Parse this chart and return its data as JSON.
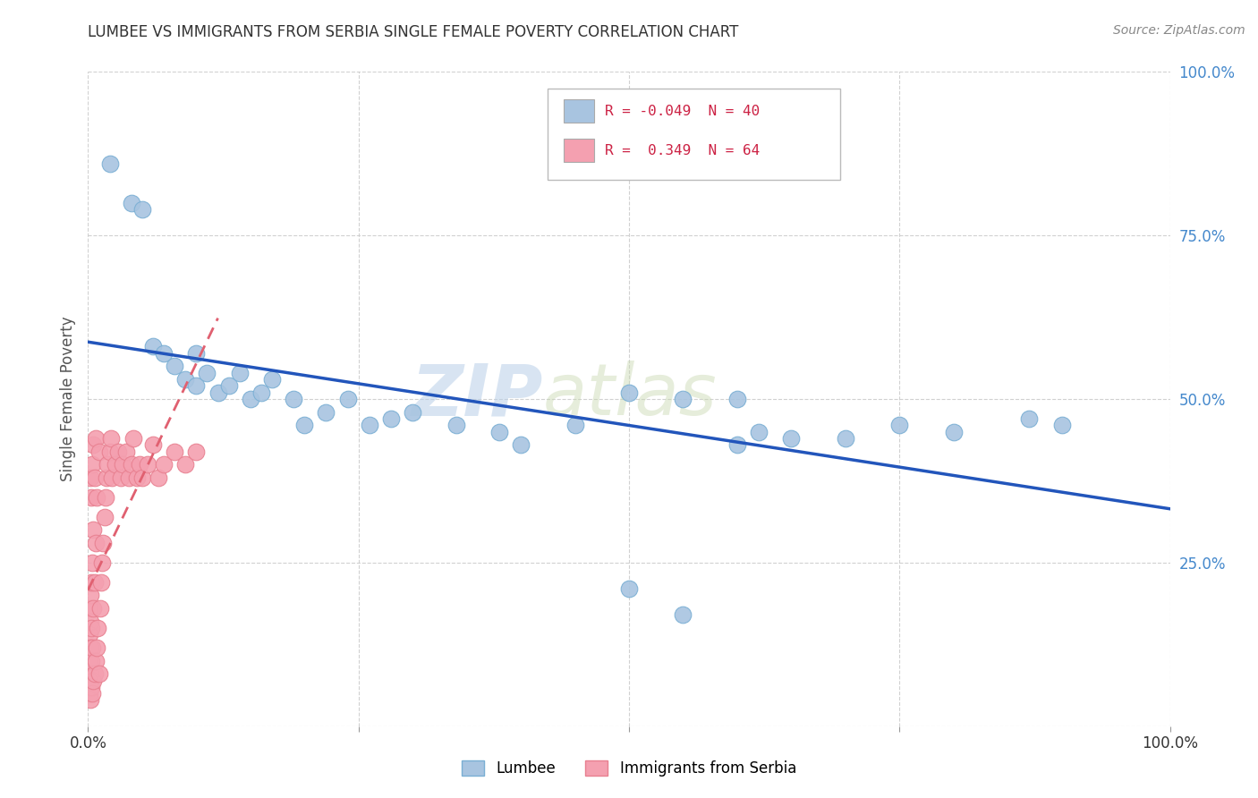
{
  "title": "LUMBEE VS IMMIGRANTS FROM SERBIA SINGLE FEMALE POVERTY CORRELATION CHART",
  "source": "Source: ZipAtlas.com",
  "ylabel": "Single Female Poverty",
  "xlim": [
    0,
    1.0
  ],
  "ylim": [
    0,
    1.0
  ],
  "lumbee_R": "-0.049",
  "lumbee_N": "40",
  "serbia_R": "0.349",
  "serbia_N": "64",
  "lumbee_color": "#a8c4e0",
  "lumbee_edge_color": "#7aafd4",
  "serbia_color": "#f4a0b0",
  "serbia_edge_color": "#e88090",
  "lumbee_line_color": "#2255bb",
  "serbia_line_color": "#e06070",
  "legend_lumbee_label": "Lumbee",
  "legend_serbia_label": "Immigrants from Serbia",
  "watermark_zip": "ZIP",
  "watermark_atlas": "atlas",
  "background_color": "#ffffff",
  "grid_color": "#cccccc",
  "lumbee_x": [
    0.02,
    0.04,
    0.05,
    0.06,
    0.07,
    0.08,
    0.09,
    0.1,
    0.1,
    0.11,
    0.12,
    0.13,
    0.14,
    0.15,
    0.16,
    0.17,
    0.19,
    0.2,
    0.22,
    0.24,
    0.26,
    0.28,
    0.3,
    0.34,
    0.38,
    0.4,
    0.45,
    0.5,
    0.55,
    0.6,
    0.62,
    0.65,
    0.7,
    0.75,
    0.8,
    0.87,
    0.9,
    0.5,
    0.55,
    0.6
  ],
  "lumbee_y": [
    0.86,
    0.8,
    0.79,
    0.58,
    0.57,
    0.55,
    0.53,
    0.57,
    0.52,
    0.54,
    0.51,
    0.52,
    0.54,
    0.5,
    0.51,
    0.53,
    0.5,
    0.46,
    0.48,
    0.5,
    0.46,
    0.47,
    0.48,
    0.46,
    0.45,
    0.43,
    0.46,
    0.51,
    0.5,
    0.5,
    0.45,
    0.44,
    0.44,
    0.46,
    0.45,
    0.47,
    0.46,
    0.21,
    0.17,
    0.43
  ],
  "serbia_x": [
    0.001,
    0.001,
    0.001,
    0.001,
    0.001,
    0.002,
    0.002,
    0.002,
    0.002,
    0.002,
    0.002,
    0.003,
    0.003,
    0.003,
    0.003,
    0.003,
    0.004,
    0.004,
    0.004,
    0.004,
    0.005,
    0.005,
    0.005,
    0.005,
    0.006,
    0.006,
    0.006,
    0.007,
    0.007,
    0.007,
    0.008,
    0.008,
    0.009,
    0.01,
    0.01,
    0.011,
    0.012,
    0.013,
    0.014,
    0.015,
    0.016,
    0.017,
    0.018,
    0.02,
    0.021,
    0.022,
    0.025,
    0.028,
    0.03,
    0.032,
    0.035,
    0.038,
    0.04,
    0.042,
    0.045,
    0.048,
    0.05,
    0.055,
    0.06,
    0.065,
    0.07,
    0.08,
    0.09,
    0.1
  ],
  "serbia_y": [
    0.05,
    0.07,
    0.1,
    0.14,
    0.18,
    0.04,
    0.08,
    0.12,
    0.16,
    0.2,
    0.38,
    0.06,
    0.1,
    0.15,
    0.22,
    0.35,
    0.05,
    0.12,
    0.25,
    0.4,
    0.07,
    0.18,
    0.3,
    0.43,
    0.08,
    0.22,
    0.38,
    0.1,
    0.28,
    0.44,
    0.12,
    0.35,
    0.15,
    0.08,
    0.42,
    0.18,
    0.22,
    0.25,
    0.28,
    0.32,
    0.35,
    0.38,
    0.4,
    0.42,
    0.44,
    0.38,
    0.4,
    0.42,
    0.38,
    0.4,
    0.42,
    0.38,
    0.4,
    0.44,
    0.38,
    0.4,
    0.38,
    0.4,
    0.43,
    0.38,
    0.4,
    0.42,
    0.4,
    0.42
  ]
}
